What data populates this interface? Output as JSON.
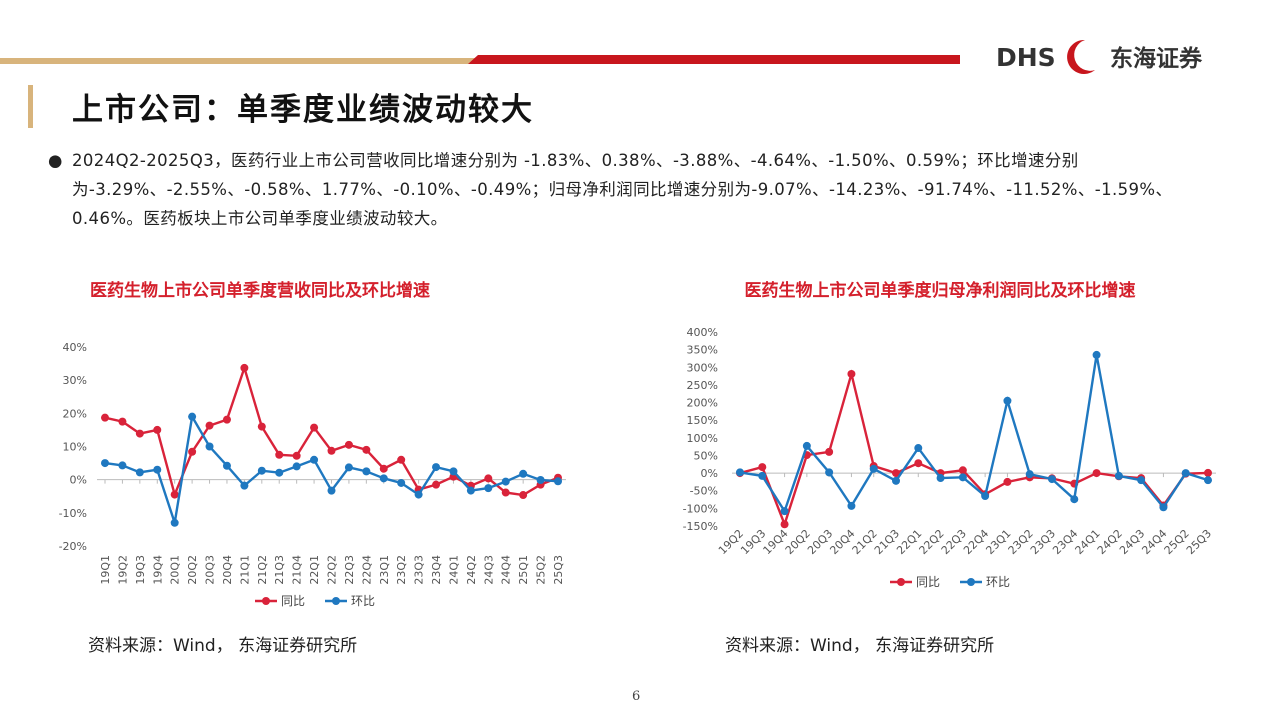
{
  "header": {
    "title": "上市公司：单季度业绩波动较大",
    "logo_text": "DHS",
    "logo_name": "东海证券"
  },
  "bullet": "2024Q2-2025Q3，医药行业上市公司营收同比增速分别为 -1.83%、0.38%、-3.88%、-4.64%、-1.50%、0.59%；环比增速分别为-3.29%、-2.55%、-0.58%、1.77%、-0.10%、-0.49%；归母净利润同比增速分别为-9.07%、-14.23%、-91.74%、-11.52%、-1.59%、0.46%。医药板块上市公司单季度业绩波动较大。",
  "chart_data": [
    {
      "type": "line",
      "title": "医药生物上市公司单季度营收同比及环比增速",
      "source": "资料来源：Wind， 东海证券研究所",
      "categories": [
        "19Q1",
        "19Q2",
        "19Q3",
        "19Q4",
        "20Q1",
        "20Q2",
        "20Q3",
        "20Q4",
        "21Q1",
        "21Q2",
        "21Q3",
        "21Q4",
        "22Q1",
        "22Q2",
        "22Q3",
        "22Q4",
        "23Q1",
        "23Q2",
        "23Q3",
        "23Q4",
        "24Q1",
        "24Q2",
        "24Q3",
        "24Q4",
        "25Q1",
        "25Q2",
        "25Q3"
      ],
      "series": [
        {
          "name": "同比",
          "color": "#d9233a",
          "values": [
            18.7,
            17.5,
            13.9,
            15,
            -4.5,
            8.4,
            16.3,
            18.1,
            33.7,
            16,
            7.5,
            7.2,
            15.7,
            8.7,
            10.5,
            9,
            3.3,
            6,
            -3,
            -1.5,
            0.9,
            -1.83,
            0.38,
            -3.88,
            -4.64,
            -1.5,
            0.59
          ]
        },
        {
          "name": "环比",
          "color": "#1f78c0",
          "values": [
            5,
            4.3,
            2.2,
            3,
            -13,
            19,
            10,
            4.2,
            -1.8,
            2.7,
            2.1,
            4,
            6,
            -3.3,
            3.7,
            2.5,
            0.4,
            -1,
            -4.5,
            3.8,
            2.5,
            -3.29,
            -2.55,
            -0.58,
            1.77,
            -0.1,
            -0.49
          ]
        }
      ],
      "ylim": [
        -20,
        40
      ],
      "yticks": [
        {
          "value": -20,
          "label": "-20%"
        },
        {
          "value": -10,
          "label": "-10%"
        },
        {
          "value": 0,
          "label": "0%"
        },
        {
          "value": 10,
          "label": "10%"
        },
        {
          "value": 20,
          "label": "20%"
        },
        {
          "value": 30,
          "label": "30%"
        },
        {
          "value": 40,
          "label": "40%"
        }
      ],
      "grid": false,
      "legend": "bottom"
    },
    {
      "type": "line",
      "title": "医药生物上市公司单季度归母净利润同比及环比增速",
      "source": "资料来源：Wind， 东海证券研究所",
      "categories": [
        "19Q2",
        "19Q3",
        "19Q4",
        "20Q2",
        "20Q3",
        "20Q4",
        "21Q2",
        "21Q3",
        "22Q1",
        "22Q2",
        "22Q3",
        "22Q4",
        "23Q1",
        "23Q2",
        "23Q3",
        "23Q4",
        "24Q1",
        "24Q2",
        "24Q3",
        "24Q4",
        "25Q2",
        "25Q3"
      ],
      "series": [
        {
          "name": "同比",
          "color": "#d9233a",
          "values": [
            0,
            17,
            -145,
            51,
            60,
            281,
            20,
            0,
            28,
            0,
            8,
            -60,
            -25,
            -12,
            -15,
            -30,
            0,
            -9.07,
            -14.23,
            -91.74,
            -1.59,
            0.46
          ]
        },
        {
          "name": "环比",
          "color": "#1f78c0",
          "values": [
            2,
            -8,
            -108,
            77,
            2,
            -93,
            12,
            -22,
            71,
            -14,
            -12,
            -65,
            205,
            -3,
            -17,
            -74,
            335,
            -8,
            -20,
            -97,
            0,
            -20
          ]
        }
      ],
      "ylim": [
        -150,
        400
      ],
      "yticks": [
        {
          "value": -150,
          "label": "-150%"
        },
        {
          "value": -100,
          "label": "-100%"
        },
        {
          "value": -50,
          "label": "-50%"
        },
        {
          "value": 0,
          "label": "0%"
        },
        {
          "value": 50,
          "label": "50%"
        },
        {
          "value": 100,
          "label": "100%"
        },
        {
          "value": 150,
          "label": "150%"
        },
        {
          "value": 200,
          "label": "200%"
        },
        {
          "value": 250,
          "label": "250%"
        },
        {
          "value": 300,
          "label": "300%"
        },
        {
          "value": 350,
          "label": "350%"
        },
        {
          "value": 400,
          "label": "400%"
        }
      ],
      "grid": false,
      "legend": "bottom"
    }
  ],
  "page_number": "6"
}
